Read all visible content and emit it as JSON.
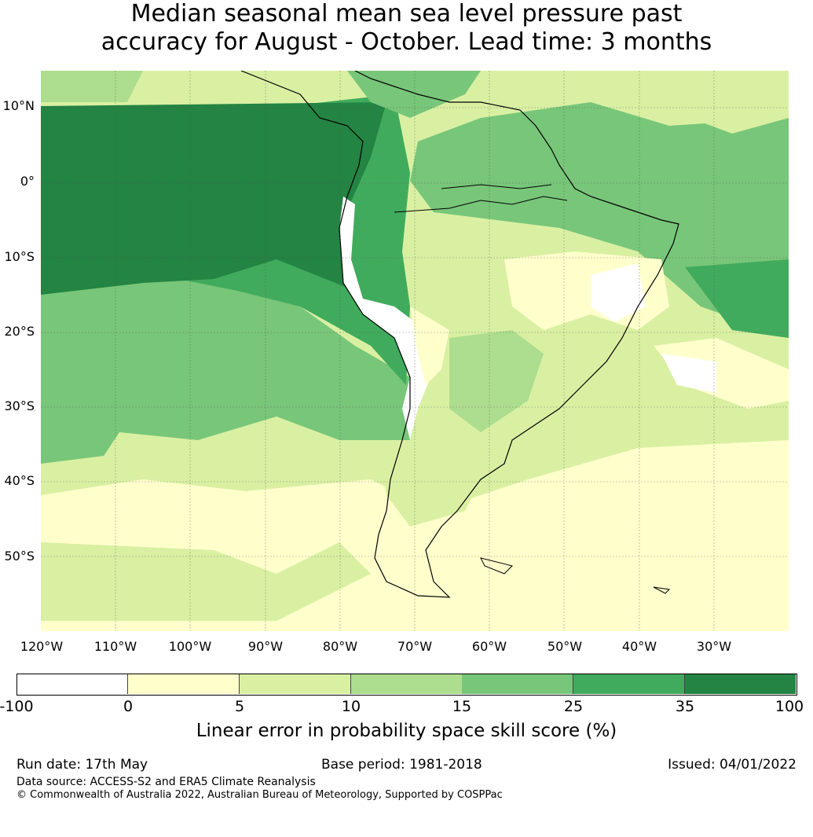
{
  "title": {
    "line1": "Median seasonal mean sea level pressure past",
    "line2": "accuracy for August - October. Lead time: 3 months"
  },
  "map": {
    "lat_labels": [
      "10°N",
      "0°",
      "10°S",
      "20°S",
      "30°S",
      "40°S",
      "50°S"
    ],
    "lon_labels": [
      "120°W",
      "110°W",
      "100°W",
      "90°W",
      "80°W",
      "70°W",
      "60°W",
      "50°W",
      "40°W",
      "30°W"
    ],
    "extent": {
      "lon": [
        -120,
        -20
      ],
      "lat": [
        -60,
        15
      ]
    }
  },
  "colorbar": {
    "ticks": [
      "-100",
      "0",
      "5",
      "10",
      "15",
      "25",
      "35",
      "100"
    ],
    "colors": [
      "#ffffff",
      "#ffffcc",
      "#d9f0a3",
      "#addd8e",
      "#78c679",
      "#41ab5d",
      "#238443"
    ],
    "label": "Linear error in probability space skill score (%)"
  },
  "footer": {
    "run_date": "Run date: 17th May",
    "base_period": "Base period: 1981-2018",
    "issued": "Issued: 04/01/2022",
    "data_source": "Data source: ACCESS-S2 and ERA5 Climate Reanalysis",
    "copyright": "© Commonwealth of Australia 2022, Australian Bureau of Meteorology, Supported by COSPPac"
  }
}
